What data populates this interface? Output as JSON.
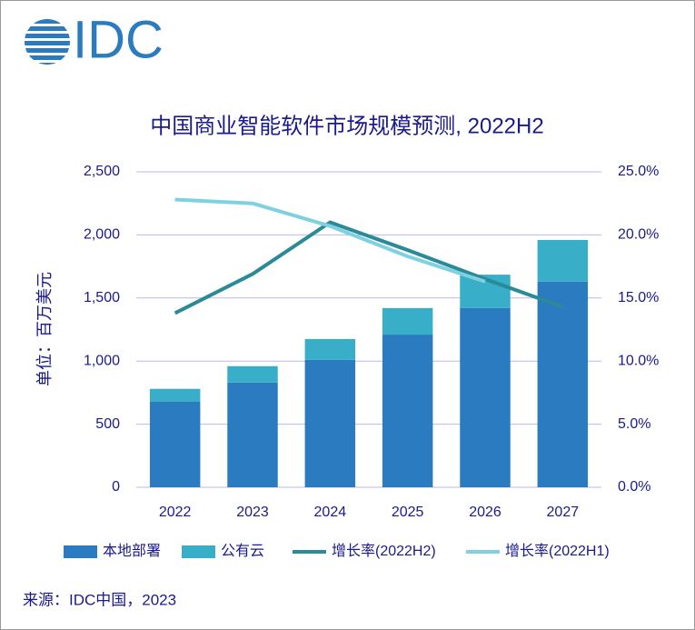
{
  "logo": "IDC",
  "source": "来源：IDC中国，2023",
  "chart_data": {
    "type": "bar",
    "title": "中国商业智能软件市场规模预测, 2022H2",
    "y_label": "单位：百万美元",
    "categories": [
      "2022",
      "2023",
      "2024",
      "2025",
      "2026",
      "2027"
    ],
    "stacked": true,
    "series": [
      {
        "name": "本地部署",
        "type": "bar",
        "color": "#2a7bbf",
        "values": [
          680,
          830,
          1010,
          1210,
          1420,
          1630
        ]
      },
      {
        "name": "公有云",
        "type": "bar",
        "color": "#38aec8",
        "values": [
          100,
          130,
          165,
          210,
          265,
          330
        ]
      },
      {
        "name": "增长率(2022H2)",
        "type": "line",
        "axis": "y2",
        "color": "#2a8a98",
        "values": [
          13.8,
          16.9,
          21.0,
          18.8,
          16.5,
          14.3
        ]
      },
      {
        "name": "增长率(2022H1)",
        "type": "line",
        "axis": "y2",
        "color": "#7fd0e0",
        "values": [
          22.8,
          22.5,
          20.7,
          18.3,
          16.3,
          null
        ]
      }
    ],
    "ylim": [
      0,
      2500
    ],
    "yticks": [
      0,
      500,
      {
        "value": 1000,
        "label": "1,000"
      },
      {
        "value": 1500,
        "label": "1,500"
      },
      {
        "value": 2000,
        "label": "2,000"
      },
      {
        "value": 2500,
        "label": "2,500"
      }
    ],
    "y2lim": [
      0,
      25
    ],
    "y2ticks": [
      {
        "value": 0,
        "label": "0.0%"
      },
      {
        "value": 5,
        "label": "5.0%"
      },
      {
        "value": 10,
        "label": "10.0%"
      },
      {
        "value": 15,
        "label": "15.0%"
      },
      {
        "value": 20,
        "label": "20.0%"
      },
      {
        "value": 25,
        "label": "25.0%"
      }
    ],
    "grid": true,
    "legend": "bottom"
  }
}
